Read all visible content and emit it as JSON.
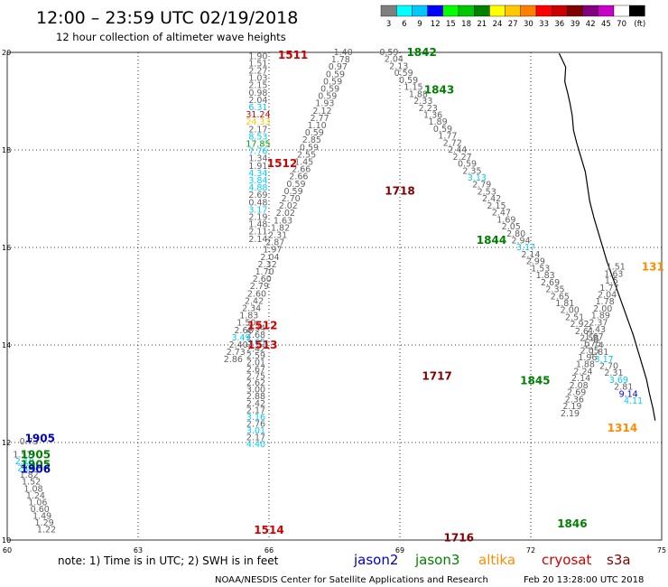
{
  "header": {
    "title": "12:00 – 23:59 UTC 02/19/2018",
    "subtitle": "12 hour collection of altimeter wave heights"
  },
  "legend": {
    "unit": "(ft)",
    "bins": [
      {
        "label": "3",
        "color": "#7f7f7f"
      },
      {
        "label": "6",
        "color": "#00ffff"
      },
      {
        "label": "9",
        "color": "#00c8ff"
      },
      {
        "label": "12",
        "color": "#0000ff"
      },
      {
        "label": "15",
        "color": "#00ff00"
      },
      {
        "label": "18",
        "color": "#00c800"
      },
      {
        "label": "21",
        "color": "#008000"
      },
      {
        "label": "24",
        "color": "#ffff00"
      },
      {
        "label": "27",
        "color": "#ffc800"
      },
      {
        "label": "30",
        "color": "#ff8000"
      },
      {
        "label": "33",
        "color": "#ff0000"
      },
      {
        "label": "36",
        "color": "#c80000"
      },
      {
        "label": "39",
        "color": "#800000"
      },
      {
        "label": "42",
        "color": "#800080"
      },
      {
        "label": "45",
        "color": "#c800c8"
      },
      {
        "label": "70",
        "color": "#ffffff"
      },
      {
        "label": "",
        "color": "#000000"
      }
    ]
  },
  "axes": {
    "lon_ticks": [
      "60",
      "63",
      "66",
      "69",
      "72",
      "75"
    ],
    "lat_ticks": [
      "20",
      "18",
      "16",
      "14",
      "12",
      "10"
    ]
  },
  "colors": {
    "jason2": "#0000c8",
    "jason3": "#008000",
    "altika": "#ff8c00",
    "cryosat": "#d00000",
    "s3a": "#800000",
    "value": "#606060"
  },
  "track_labels": [
    {
      "text": "1511",
      "sat": "cryosat",
      "lon": 66.55,
      "lat": 19.94
    },
    {
      "text": "1842",
      "sat": "jason3",
      "lon": 69.5,
      "lat": 20.0
    },
    {
      "text": "1843",
      "sat": "jason3",
      "lon": 69.9,
      "lat": 19.23
    },
    {
      "text": "1512",
      "sat": "cryosat",
      "lon": 66.3,
      "lat": 17.72
    },
    {
      "text": "1718",
      "sat": "s3a",
      "lon": 69.0,
      "lat": 17.16
    },
    {
      "text": "1844",
      "sat": "jason3",
      "lon": 71.1,
      "lat": 16.15
    },
    {
      "text": "1512",
      "sat": "cryosat",
      "lon": 65.85,
      "lat": 14.4
    },
    {
      "text": "1513",
      "sat": "cryosat",
      "lon": 65.85,
      "lat": 14.0
    },
    {
      "text": "1717",
      "sat": "s3a",
      "lon": 69.85,
      "lat": 13.36
    },
    {
      "text": "1845",
      "sat": "jason3",
      "lon": 72.1,
      "lat": 13.27
    },
    {
      "text": "131",
      "sat": "altika",
      "lon": 74.8,
      "lat": 15.6
    },
    {
      "text": "1314",
      "sat": "altika",
      "lon": 74.1,
      "lat": 12.3
    },
    {
      "text": "1905",
      "sat": "jason2",
      "lon": 60.75,
      "lat": 12.08
    },
    {
      "text": "1905",
      "sat": "jason3",
      "lon": 60.65,
      "lat": 11.75
    },
    {
      "text": "1905",
      "sat": "jason3",
      "lon": 60.65,
      "lat": 11.55
    },
    {
      "text": "1906",
      "sat": "jason2",
      "lon": 60.65,
      "lat": 11.45
    },
    {
      "text": "1514",
      "sat": "cryosat",
      "lon": 66.0,
      "lat": 10.2
    },
    {
      "text": "1716",
      "sat": "s3a",
      "lon": 70.35,
      "lat": 10.05
    },
    {
      "text": "1846",
      "sat": "jason3",
      "lon": 72.95,
      "lat": 10.33
    }
  ],
  "value_columns": [
    {
      "lon": 65.75,
      "lat_start": 19.92,
      "step": 0.15,
      "values": [
        {
          "v": "1.90"
        },
        {
          "v": "1.51"
        },
        {
          "v": "2.27"
        },
        {
          "v": "1.03"
        },
        {
          "v": "2.15"
        },
        {
          "v": "0.98"
        },
        {
          "v": "2.04"
        },
        {
          "v": "6.31",
          "c": "#00c8ff"
        },
        {
          "v": "31.24",
          "c": "#d00000"
        },
        {
          "v": "24.33",
          "c": "#ffc800"
        },
        {
          "v": "2.17"
        },
        {
          "v": "8.53",
          "c": "#00c8ff"
        },
        {
          "v": "17.85",
          "c": "#00a000"
        },
        {
          "v": "7.76",
          "c": "#00c8ff"
        },
        {
          "v": "1.34"
        },
        {
          "v": "1.91"
        },
        {
          "v": "4.34",
          "c": "#00d0ff"
        },
        {
          "v": "3.84",
          "c": "#00d0ff"
        },
        {
          "v": "4.88",
          "c": "#00d0ff"
        },
        {
          "v": "2.69"
        },
        {
          "v": "0.48"
        },
        {
          "v": "3.17",
          "c": "#00c8ff"
        },
        {
          "v": "2.19"
        },
        {
          "v": "1.48"
        },
        {
          "v": "2.11"
        },
        {
          "v": "2.14"
        }
      ]
    },
    {
      "lon": 65.7,
      "lat_start": 14.34,
      "step": 0.14,
      "values": [
        {
          "v": "2.34"
        },
        {
          "v": "2.68"
        },
        {
          "v": "3.65",
          "c": "#00c8ff"
        },
        {
          "v": "2.42"
        },
        {
          "v": "2.59"
        },
        {
          "v": "2.01"
        },
        {
          "v": "2.67"
        },
        {
          "v": "2.75"
        },
        {
          "v": "2.62"
        },
        {
          "v": "3.00"
        },
        {
          "v": "2.88"
        },
        {
          "v": "2.42"
        },
        {
          "v": "2.17"
        },
        {
          "v": "3.16",
          "c": "#00c8ff"
        },
        {
          "v": "2.76"
        },
        {
          "v": "3.01",
          "c": "#00c8ff"
        },
        {
          "v": "2.17"
        },
        {
          "v": "4.40",
          "c": "#00d0ff"
        }
      ]
    },
    {
      "lon": 67.7,
      "lat_start": 20.0,
      "dlon": -0.06,
      "step": 0.15,
      "values": [
        {
          "v": "1.40"
        },
        {
          "v": "1.78"
        },
        {
          "v": "0.97"
        },
        {
          "v": "0.59"
        },
        {
          "v": "0.59"
        },
        {
          "v": "0.59"
        },
        {
          "v": "0.59"
        },
        {
          "v": "1.93"
        },
        {
          "v": "2.12"
        },
        {
          "v": "2.77"
        },
        {
          "v": "1.10"
        },
        {
          "v": "0.59"
        },
        {
          "v": "2.85"
        },
        {
          "v": "0.59"
        },
        {
          "v": "2.55"
        },
        {
          "v": "1.45"
        },
        {
          "v": "2.66"
        },
        {
          "v": "2.66"
        },
        {
          "v": "0.59"
        },
        {
          "v": "0.59"
        },
        {
          "v": "2.70"
        },
        {
          "v": "2.02"
        },
        {
          "v": "2.02"
        },
        {
          "v": "1.63"
        },
        {
          "v": "1.82"
        },
        {
          "v": "2.31"
        },
        {
          "v": "2.87"
        },
        {
          "v": "1.97"
        },
        {
          "v": "2.04"
        },
        {
          "v": "2.32"
        },
        {
          "v": "1.70"
        },
        {
          "v": "2.60"
        },
        {
          "v": "2.79"
        },
        {
          "v": "2.60"
        },
        {
          "v": "2.42"
        },
        {
          "v": "2.34"
        },
        {
          "v": "1.83"
        },
        {
          "v": "1.50"
        },
        {
          "v": "2.68"
        },
        {
          "v": "3.49",
          "c": "#00c8ff"
        },
        {
          "v": "2.40"
        },
        {
          "v": "2.73"
        },
        {
          "v": "2.86"
        }
      ]
    },
    {
      "lon": 68.75,
      "lat_start": 20.0,
      "dlon": 0.112,
      "step": 0.143,
      "values": [
        {
          "v": "0.59"
        },
        {
          "v": "2.04"
        },
        {
          "v": "2.13"
        },
        {
          "v": "0.59"
        },
        {
          "v": "0.59"
        },
        {
          "v": "1.15"
        },
        {
          "v": "1.88"
        },
        {
          "v": "2.33"
        },
        {
          "v": "2.23"
        },
        {
          "v": "1.36"
        },
        {
          "v": "1.89"
        },
        {
          "v": "0.59"
        },
        {
          "v": "1.77"
        },
        {
          "v": "2.72"
        },
        {
          "v": "2.44"
        },
        {
          "v": "2.27"
        },
        {
          "v": "0.59"
        },
        {
          "v": "2.35"
        },
        {
          "v": "3.13",
          "c": "#00c8ff"
        },
        {
          "v": "2.79"
        },
        {
          "v": "2.53"
        },
        {
          "v": "2.42"
        },
        {
          "v": "2.15"
        },
        {
          "v": "2.47"
        },
        {
          "v": "1.69"
        },
        {
          "v": "2.05"
        },
        {
          "v": "2.80"
        },
        {
          "v": "2.94"
        },
        {
          "v": "3.17",
          "c": "#00c8ff"
        },
        {
          "v": "2.14"
        },
        {
          "v": "2.99"
        },
        {
          "v": "1.53"
        },
        {
          "v": "1.83"
        },
        {
          "v": "2.69"
        },
        {
          "v": "2.35"
        },
        {
          "v": "2.65"
        },
        {
          "v": "1.81"
        },
        {
          "v": "2.00"
        },
        {
          "v": "2.51"
        },
        {
          "v": "2.92"
        },
        {
          "v": "2.61"
        },
        {
          "v": "2.58"
        },
        {
          "v": "2.74"
        },
        {
          "v": "1.81"
        },
        {
          "v": "3.17",
          "c": "#00c8ff"
        },
        {
          "v": "2.70"
        },
        {
          "v": "2.31"
        },
        {
          "v": "3.69",
          "c": "#00c8ff"
        },
        {
          "v": "2.81"
        },
        {
          "v": "9.14",
          "c": "#0000ff"
        },
        {
          "v": "4.11",
          "c": "#00d0ff"
        }
      ]
    },
    {
      "lon": 73.95,
      "lat_start": 15.6,
      "dlon": -0.05,
      "step": 0.143,
      "values": [
        {
          "v": "1.51"
        },
        {
          "v": "1.63"
        },
        {
          "v": "1.5"
        },
        {
          "v": "1.77"
        },
        {
          "v": "2.04"
        },
        {
          "v": "1.78"
        },
        {
          "v": "2.00"
        },
        {
          "v": "1.89"
        },
        {
          "v": "2.37"
        },
        {
          "v": "2.43"
        },
        {
          "v": "1.67"
        },
        {
          "v": "1.75"
        },
        {
          "v": "2.05"
        },
        {
          "v": "1.96"
        },
        {
          "v": "1.88"
        },
        {
          "v": "2.24"
        },
        {
          "v": "2.14"
        },
        {
          "v": "2.08"
        },
        {
          "v": "2.69"
        },
        {
          "v": "2.36"
        },
        {
          "v": "2.19"
        },
        {
          "v": "2.19"
        }
      ]
    },
    {
      "lon": 60.5,
      "lat_start": 12.02,
      "step": 0.0,
      "values": [
        {
          "v": "0.73"
        }
      ]
    },
    {
      "lon": 60.35,
      "lat_start": 11.75,
      "dlon": 0.05,
      "step": 0.14,
      "values": [
        {
          "v": "1.57"
        },
        {
          "v": "2.19",
          "c": "#00c8ff"
        },
        {
          "v": "2.04",
          "c": "#00c8ff"
        },
        {
          "v": "1.82"
        },
        {
          "v": "1.52"
        },
        {
          "v": "1.08"
        },
        {
          "v": "1.24"
        },
        {
          "v": "1.06"
        },
        {
          "v": "0.60"
        },
        {
          "v": "1.49"
        },
        {
          "v": "1.29"
        },
        {
          "v": "1.22"
        }
      ]
    }
  ],
  "footer": {
    "note": "note: 1) Time is in UTC; 2) SWH is in feet",
    "sats": [
      {
        "text": "jason2",
        "sat": "jason2"
      },
      {
        "text": "jason3",
        "sat": "jason3"
      },
      {
        "text": "altika",
        "sat": "altika"
      },
      {
        "text": "cryosat",
        "sat": "cryosat"
      },
      {
        "text": "s3a",
        "sat": "s3a"
      }
    ],
    "credit": "NOAA/NESDIS Center for Satellite Applications and Research",
    "timestamp": "Feb 20 13:28:00 UTC 2018"
  }
}
